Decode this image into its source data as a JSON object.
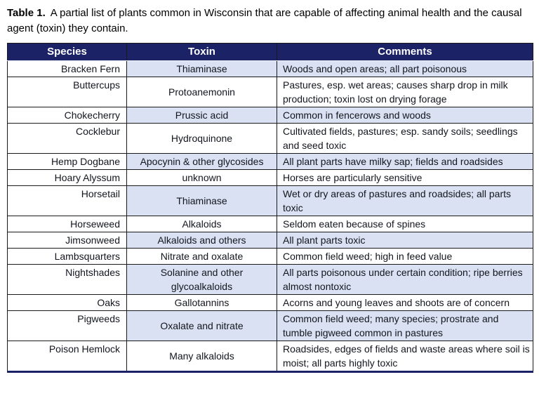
{
  "caption": {
    "label": "Table 1.",
    "text": "A partial list of plants common in Wisconsin that are capable of affecting animal health and the causal agent (toxin) they contain."
  },
  "colors": {
    "header_bg": "#1b2265",
    "header_text": "#ffffff",
    "shaded_row_bg": "#d9e1f2",
    "border": "#1a1a1a",
    "body_text": "#13161e"
  },
  "table": {
    "headers": [
      "Species",
      "Toxin",
      "Comments"
    ],
    "rows": [
      {
        "species": "Bracken Fern",
        "toxin": "Thiaminase",
        "comments": "Woods and open areas; all part poisonous",
        "shaded": true
      },
      {
        "species": "Buttercups",
        "toxin": "Protoanemonin",
        "comments": "Pastures, esp. wet areas; causes sharp drop in milk production; toxin lost on drying forage",
        "shaded": false
      },
      {
        "species": "Chokecherry",
        "toxin": "Prussic acid",
        "comments": "Common in fencerows and woods",
        "shaded": true
      },
      {
        "species": "Cocklebur",
        "toxin": "Hydroquinone",
        "comments": "Cultivated fields, pastures; esp. sandy soils; seedlings and seed toxic",
        "shaded": false
      },
      {
        "species": "Hemp Dogbane",
        "toxin": "Apocynin & other glycosides",
        "comments": "All plant parts have milky sap; fields and roadsides",
        "shaded": true
      },
      {
        "species": "Hoary Alyssum",
        "toxin": "unknown",
        "comments": "Horses are particularly sensitive",
        "shaded": false
      },
      {
        "species": "Horsetail",
        "toxin": "Thiaminase",
        "comments": "Wet or dry areas of pastures and roadsides; all parts toxic",
        "shaded": true
      },
      {
        "species": "Horseweed",
        "toxin": "Alkaloids",
        "comments": "Seldom eaten because of spines",
        "shaded": false
      },
      {
        "species": "Jimsonweed",
        "toxin": "Alkaloids and others",
        "comments": "All plant parts toxic",
        "shaded": true
      },
      {
        "species": "Lambsquarters",
        "toxin": "Nitrate and oxalate",
        "comments": "Common field weed; high in feed value",
        "shaded": false
      },
      {
        "species": "Nightshades",
        "toxin": "Solanine and other glycoalkaloids",
        "comments": "All parts poisonous under certain condition; ripe berries almost nontoxic",
        "shaded": true
      },
      {
        "species": "Oaks",
        "toxin": "Gallotannins",
        "comments": "Acorns and young leaves and shoots are of concern",
        "shaded": false
      },
      {
        "species": "Pigweeds",
        "toxin": "Oxalate and nitrate",
        "comments": "Common field weed; many species; prostrate and tumble pigweed common in pastures",
        "shaded": true
      },
      {
        "species": "Poison Hemlock",
        "toxin": "Many alkaloids",
        "comments": "Roadsides, edges of fields and waste areas where soil is moist; all parts highly toxic",
        "shaded": false
      }
    ]
  }
}
